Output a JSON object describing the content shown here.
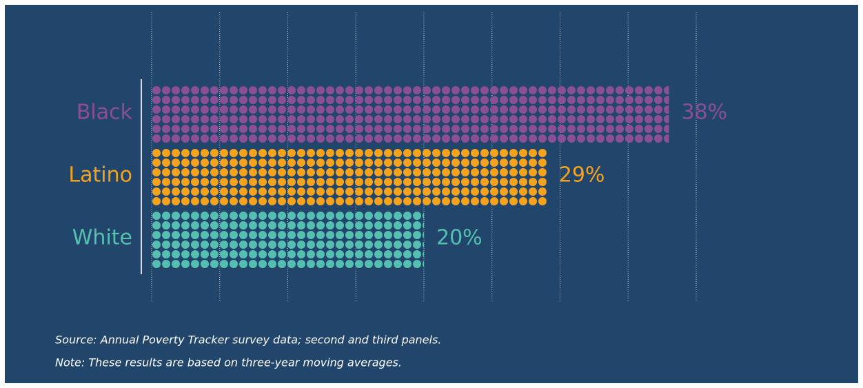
{
  "chart_data": {
    "type": "dot-bar",
    "categories": [
      "Black",
      "Latino",
      "White"
    ],
    "values": [
      38,
      29,
      20
    ],
    "value_labels": [
      "38%",
      "29%",
      "20%"
    ],
    "colors": [
      "#8b4f97",
      "#f5a31c",
      "#55c0b1"
    ],
    "xlim": [
      0,
      40
    ],
    "xticks": [
      0,
      5,
      10,
      15,
      20,
      25,
      30,
      35,
      40
    ],
    "grid": true,
    "notes": [
      "Source: Annual Poverty Tracker survey data; second and third panels.",
      "Note: These results are based on three-year moving averages."
    ]
  }
}
